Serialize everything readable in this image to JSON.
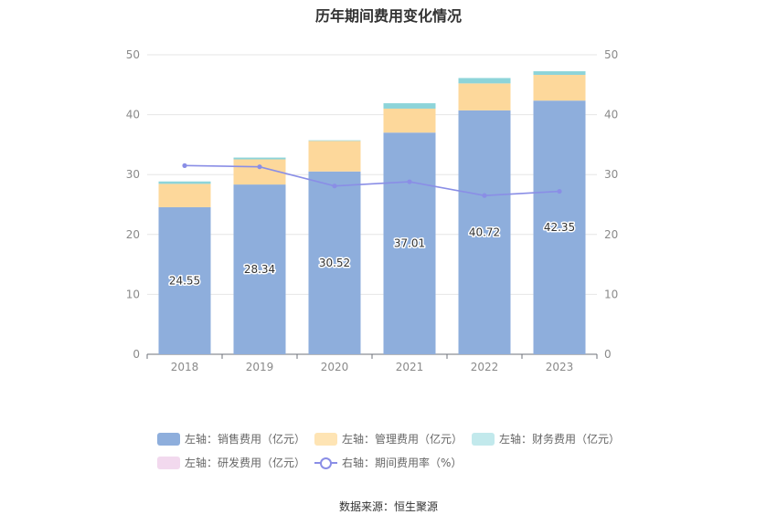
{
  "chart_data": {
    "type": "bar",
    "title": "历年期间费用变化情况",
    "categories": [
      "2018",
      "2019",
      "2020",
      "2021",
      "2022",
      "2023"
    ],
    "series": [
      {
        "name": "左轴：销售费用（亿元）",
        "axis": "left",
        "color": "#8eaedc",
        "values": [
          24.55,
          28.34,
          30.52,
          37.01,
          40.72,
          42.35
        ]
      },
      {
        "name": "左轴：管理费用（亿元）",
        "axis": "left",
        "color": "#fdd89b",
        "values": [
          3.9,
          4.2,
          5.1,
          4.0,
          4.5,
          4.3
        ]
      },
      {
        "name": "左轴：财务费用（亿元）",
        "axis": "left",
        "color": "#8dd4d9",
        "values": [
          0.4,
          0.3,
          0.1,
          0.9,
          0.9,
          0.6
        ]
      },
      {
        "name": "左轴：研发费用（亿元）",
        "axis": "left",
        "color": "#f2d9ee",
        "values": [
          0,
          0,
          0,
          0,
          0,
          0
        ]
      },
      {
        "name": "右轴：期间费用率（%）",
        "axis": "right",
        "type": "line",
        "color": "#8a8ee6",
        "values": [
          31.5,
          31.3,
          28.1,
          28.8,
          26.5,
          27.2
        ]
      }
    ],
    "data_labels": [
      "24.55",
      "28.34",
      "30.52",
      "37.01",
      "40.72",
      "42.35"
    ],
    "y_ticks": [
      "0",
      "10",
      "20",
      "30",
      "40",
      "50"
    ],
    "ylim": [
      0,
      50
    ],
    "y2lim": [
      0,
      50
    ],
    "grid": true,
    "legend_position": "bottom"
  },
  "source": "数据来源：恒生聚源"
}
